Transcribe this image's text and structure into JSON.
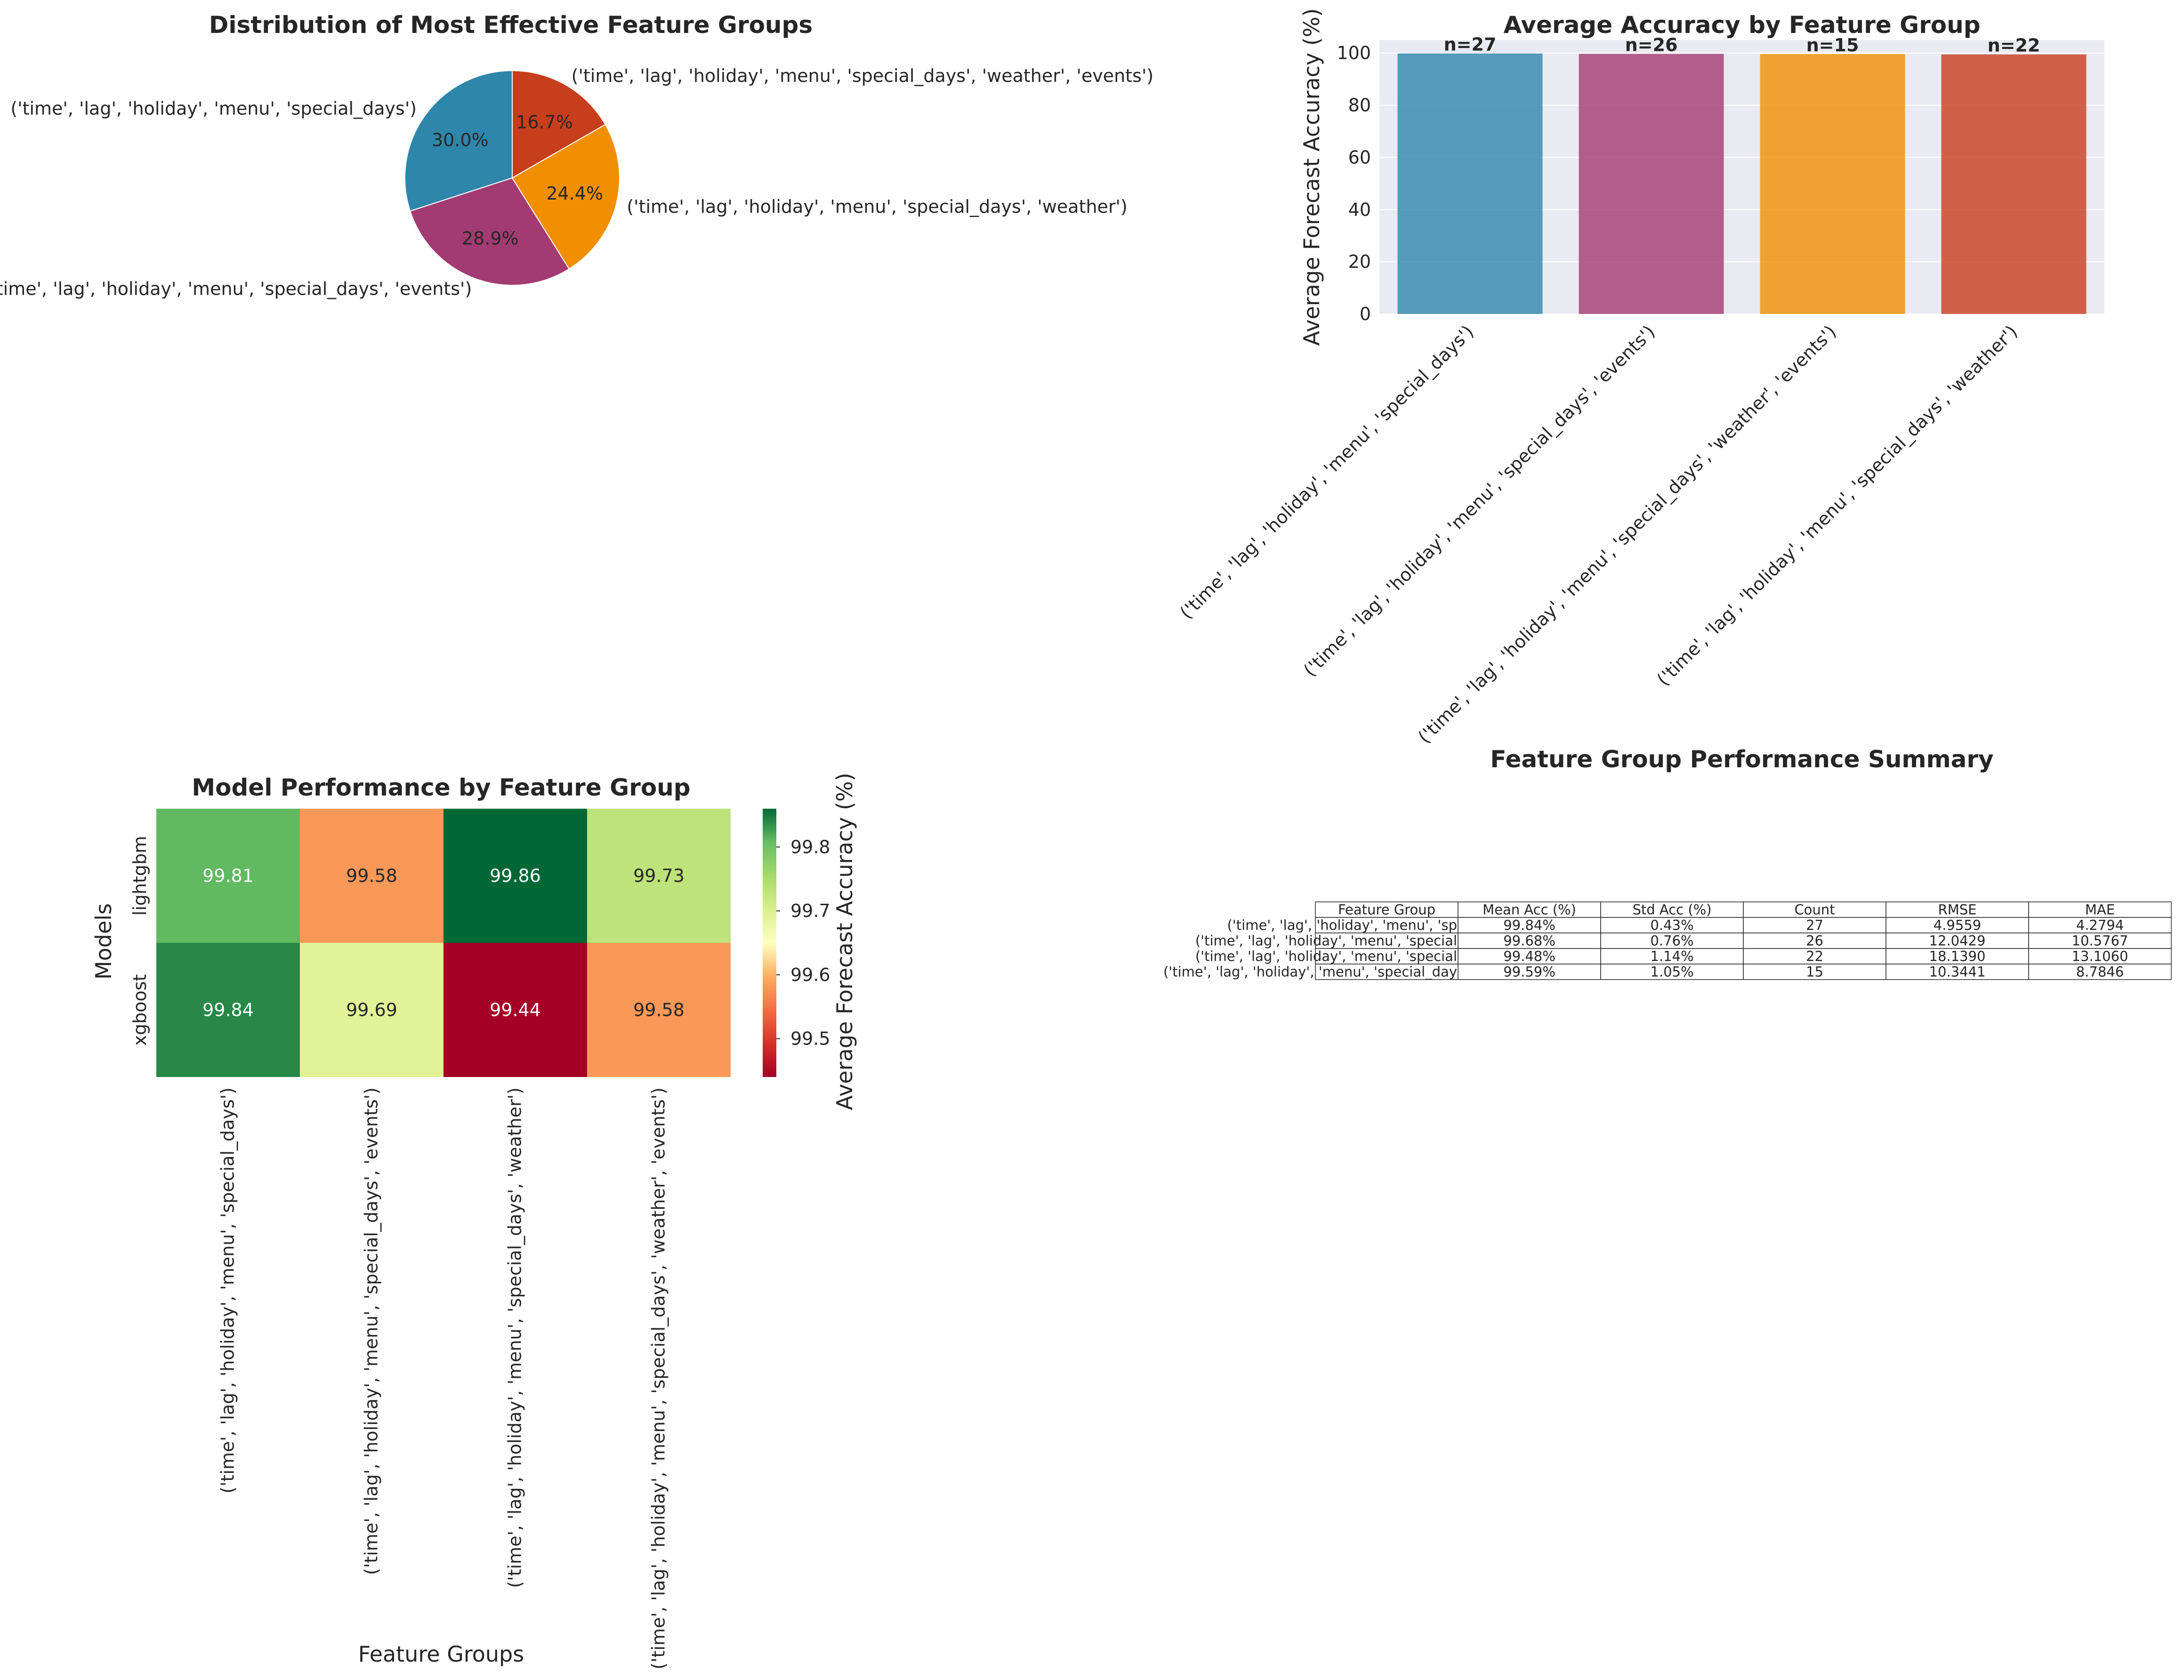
{
  "chart_data": [
    {
      "type": "pie",
      "title": "Distribution of Most Effective Feature Groups",
      "labels": [
        "('time', 'lag', 'holiday', 'menu', 'special_days')",
        "('time', 'lag', 'holiday', 'menu', 'special_days', 'events')",
        "('time', 'lag', 'holiday', 'menu', 'special_days', 'weather')",
        "('time', 'lag', 'holiday', 'menu', 'special_days', 'weather', 'events')"
      ],
      "values": [
        30.0,
        28.9,
        24.4,
        16.7
      ],
      "pct_labels": [
        "30.0%",
        "28.9%",
        "24.4%",
        "16.7%"
      ],
      "colors": [
        "#2e86ab",
        "#a23b72",
        "#f18f01",
        "#c73e1d"
      ],
      "start_angle": 90
    },
    {
      "type": "bar",
      "title": "Average Accuracy by Feature Group",
      "categories": [
        "('time', 'lag', 'holiday', 'menu', 'special_days')",
        "('time', 'lag', 'holiday', 'menu', 'special_days', 'events')",
        "('time', 'lag', 'holiday', 'menu', 'special_days', 'weather', 'events')",
        "('time', 'lag', 'holiday', 'menu', 'special_days', 'weather')"
      ],
      "values": [
        99.84,
        99.68,
        99.59,
        99.48
      ],
      "bar_labels": [
        "n=27",
        "n=26",
        "n=15",
        "n=22"
      ],
      "colors": [
        "#2e86ab",
        "#a23b72",
        "#f18f01",
        "#c73e1d"
      ],
      "xlabel": "",
      "ylabel": "Average Forecast Accuracy (%)",
      "ylim": [
        0,
        105
      ],
      "yticks": [
        0,
        20,
        40,
        60,
        80,
        100
      ],
      "grid": true
    },
    {
      "type": "heatmap",
      "title": "Model Performance by Feature Group",
      "xlabel": "Feature Groups",
      "ylabel": "Models",
      "rows": [
        "lightgbm",
        "xgboost"
      ],
      "columns": [
        "('time', 'lag', 'holiday', 'menu', 'special_days')",
        "('time', 'lag', 'holiday', 'menu', 'special_days', 'events')",
        "('time', 'lag', 'holiday', 'menu', 'special_days', 'weather')",
        "('time', 'lag', 'holiday', 'menu', 'special_days', 'weather', 'events')"
      ],
      "values": [
        [
          99.81,
          99.58,
          99.86,
          99.73
        ],
        [
          99.84,
          99.69,
          99.44,
          99.58
        ]
      ],
      "cell_labels": [
        [
          "99.81",
          "99.58",
          "99.86",
          "99.73"
        ],
        [
          "99.84",
          "99.69",
          "99.44",
          "99.58"
        ]
      ],
      "colormap": "RdYlGn",
      "vmin": 99.44,
      "vmax": 99.86,
      "colorbar_label": "Average Forecast Accuracy (%)",
      "colorbar_ticks": [
        "99.5",
        "99.6",
        "99.7",
        "99.8"
      ]
    },
    {
      "type": "table",
      "title": "Feature Group Performance Summary",
      "row_labels": [
        "('time', 'lag', 'holiday', 'menu', 'sp",
        "('time', 'lag', 'holiday', 'menu', 'special",
        "('time', 'lag', 'holiday', 'menu', 'special",
        "('time', 'lag', 'holiday', 'menu', 'special_day"
      ],
      "columns": [
        "Feature Group",
        "Mean Acc (%)",
        "Std Acc (%)",
        "Count",
        "RMSE",
        "MAE"
      ],
      "rows": [
        [
          "99.84%",
          "0.43%",
          "27",
          "4.9559",
          "4.2794"
        ],
        [
          "99.68%",
          "0.76%",
          "26",
          "12.0429",
          "10.5767"
        ],
        [
          "99.48%",
          "1.14%",
          "22",
          "18.1390",
          "13.1060"
        ],
        [
          "99.59%",
          "1.05%",
          "15",
          "10.3441",
          "8.7846"
        ]
      ]
    }
  ]
}
